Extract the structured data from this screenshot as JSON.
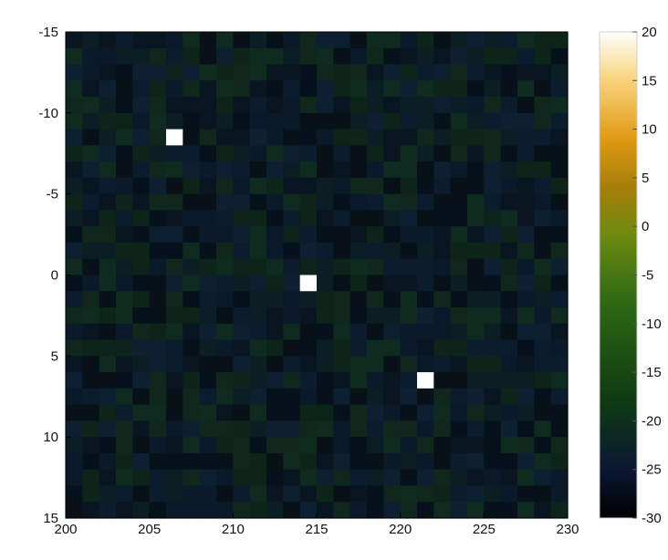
{
  "chart_data": {
    "type": "heatmap",
    "title": "",
    "xlabel": "",
    "ylabel": "",
    "x_ticks": [
      "200",
      "205",
      "210",
      "215",
      "220",
      "225",
      "230"
    ],
    "y_ticks": [
      "-15",
      "-10",
      "-5",
      "0",
      "5",
      "10",
      "15"
    ],
    "xlim": [
      200,
      230
    ],
    "ylim": [
      -15,
      15
    ],
    "y_direction": "top-to-bottom increasing",
    "colorbar": {
      "range": [
        -30,
        20
      ],
      "ticks": [
        "20",
        "15",
        "10",
        "5",
        "0",
        "-5",
        "-10",
        "-15",
        "-20",
        "-25",
        "-30"
      ],
      "colors": [
        "#000000",
        "#0b1733",
        "#0f3d12",
        "#2f6a14",
        "#6d8a10",
        "#a67e09",
        "#e09a14",
        "#f7d27a",
        "#ffffff"
      ]
    },
    "grid": "30x30",
    "background_level": -28,
    "peaks": [
      {
        "x": 206.5,
        "y": -8.5,
        "value": 20
      },
      {
        "x": 214.5,
        "y": 0.5,
        "value": 20
      },
      {
        "x": 221.5,
        "y": 6.5,
        "value": 20
      }
    ],
    "faint_title_text": "",
    "faint_xlabel_text": "",
    "faint_ylabel_text": ""
  }
}
